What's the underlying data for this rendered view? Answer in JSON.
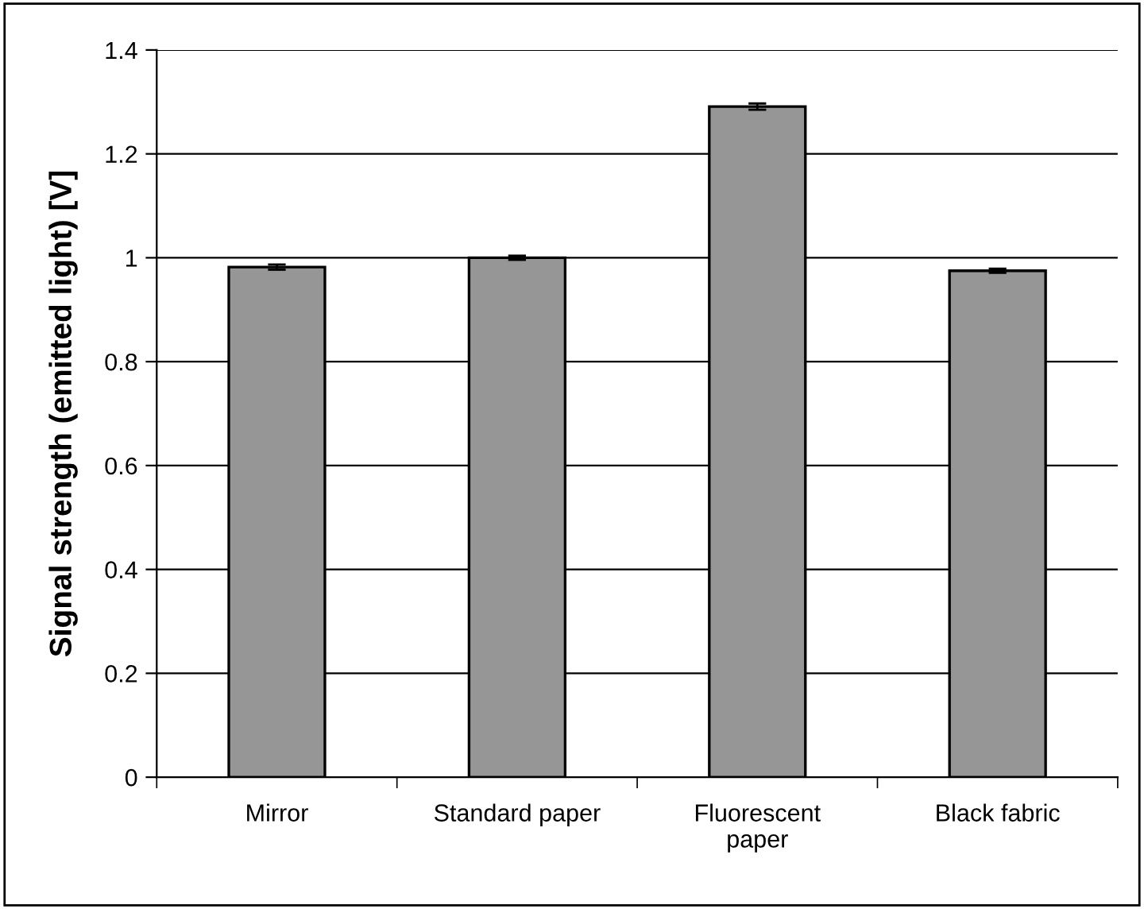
{
  "chart_data": {
    "type": "bar",
    "ylabel": "Signal strength (emitted light) [V]",
    "categories": [
      "Mirror",
      "Standard paper",
      "Fluorescent\npaper",
      "Black fabric"
    ],
    "values": [
      0.982,
      1.0,
      1.291,
      0.975
    ],
    "errors": [
      0.005,
      0.004,
      0.006,
      0.004
    ],
    "color": "#969696",
    "ylim": [
      0,
      1.4
    ],
    "yticks": [
      0,
      0.2,
      0.4,
      0.6,
      0.8,
      1,
      1.2,
      1.4
    ],
    "grid": "y"
  }
}
